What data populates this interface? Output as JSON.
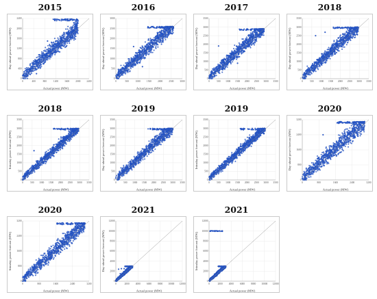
{
  "figure": {
    "background": "#ffffff",
    "point_color": "#2d5fd6",
    "point_edge": "#1a3f9c",
    "diagonal_color": "#8a8a8a",
    "grid_color": "#e6e6e6"
  },
  "chart_data": [
    {
      "type": "scatter",
      "title": "2015",
      "xlabel": "Actual power (MW)",
      "ylabel": "Day-ahead power forecast (MW)",
      "xticks": [
        "0",
        "400",
        "800",
        "1200",
        "1600",
        "2000",
        "2400"
      ],
      "yticks": [
        "0",
        "400",
        "800",
        "1200",
        "1600",
        "2000",
        "2400"
      ],
      "xlim": [
        0,
        2400
      ],
      "ylim": [
        0,
        2400
      ],
      "grid": true,
      "cloud": {
        "x_max": 2000,
        "y_max": 2380,
        "spread": 0.2
      },
      "series": [
        {
          "points": [
            [
              150,
              350
            ],
            [
              400,
              650
            ],
            [
              700,
              900
            ],
            [
              1000,
              1150
            ],
            [
              1300,
              1400
            ],
            [
              1600,
              1800
            ],
            [
              1900,
              2100
            ],
            [
              2000,
              2300
            ],
            [
              900,
              1500
            ],
            [
              500,
              200
            ]
          ]
        }
      ]
    },
    {
      "type": "scatter",
      "title": "2016",
      "xlabel": "Actual power (MW)",
      "ylabel": "Day-ahead power forecast (MW)",
      "xticks": [
        "0",
        "500",
        "1000",
        "1500",
        "2000",
        "2500",
        "3000"
      ],
      "yticks": [
        "0",
        "500",
        "1000",
        "1500",
        "2000",
        "2500",
        "3000"
      ],
      "xlim": [
        0,
        3000
      ],
      "ylim": [
        0,
        3000
      ],
      "grid": true,
      "cloud": {
        "x_max": 2600,
        "y_max": 2600,
        "spread": 0.22
      },
      "series": [
        {
          "points": [
            [
              200,
              400
            ],
            [
              600,
              900
            ],
            [
              1000,
              1300
            ],
            [
              1500,
              1700
            ],
            [
              2000,
              2200
            ],
            [
              2400,
              2550
            ],
            [
              2550,
              2600
            ],
            [
              800,
              1600
            ],
            [
              1200,
              600
            ]
          ]
        }
      ]
    },
    {
      "type": "scatter",
      "title": "2017",
      "xlabel": "Actual power (MW)",
      "ylabel": "Day-ahead power forecast (MW)",
      "xticks": [
        "0",
        "500",
        "1000",
        "1500",
        "2000",
        "2500",
        "3000",
        "3500"
      ],
      "yticks": [
        "0",
        "500",
        "1000",
        "1500",
        "2000",
        "2500",
        "3000",
        "3500"
      ],
      "xlim": [
        0,
        3500
      ],
      "ylim": [
        0,
        3500
      ],
      "grid": true,
      "cloud": {
        "x_max": 2900,
        "y_max": 2900,
        "spread": 0.22
      },
      "series": [
        {
          "points": [
            [
              300,
              500
            ],
            [
              700,
              1100
            ],
            [
              1200,
              1600
            ],
            [
              1700,
              2000
            ],
            [
              2200,
              2500
            ],
            [
              2700,
              2850
            ],
            [
              500,
              1900
            ],
            [
              1500,
              900
            ]
          ]
        }
      ]
    },
    {
      "type": "scatter",
      "title": "2018",
      "xlabel": "Actual power (MW)",
      "ylabel": "Day-ahead power forecast (MW)",
      "xticks": [
        "0",
        "500",
        "1000",
        "1500",
        "2000",
        "2500",
        "3000",
        "3500"
      ],
      "yticks": [
        "0",
        "500",
        "1000",
        "1500",
        "2000",
        "2500",
        "3000",
        "3500"
      ],
      "xlim": [
        0,
        3500
      ],
      "ylim": [
        0,
        3500
      ],
      "grid": true,
      "cloud": {
        "x_max": 2950,
        "y_max": 3000,
        "spread": 0.2
      },
      "series": [
        {
          "points": [
            [
              300,
              500
            ],
            [
              800,
              1100
            ],
            [
              1300,
              1500
            ],
            [
              1800,
              2000
            ],
            [
              2300,
              2500
            ],
            [
              2800,
              2900
            ],
            [
              700,
              2500
            ],
            [
              1200,
              2700
            ]
          ]
        }
      ]
    },
    {
      "type": "scatter",
      "title": "2018",
      "xlabel": "Actual power (MW)",
      "ylabel": "Intraday power forecast (MW)",
      "xticks": [
        "0",
        "500",
        "1000",
        "1500",
        "2000",
        "2500",
        "3000",
        "3500"
      ],
      "yticks": [
        "0",
        "500",
        "1000",
        "1500",
        "2000",
        "2500",
        "3000",
        "3500"
      ],
      "xlim": [
        0,
        3500
      ],
      "ylim": [
        0,
        3500
      ],
      "grid": true,
      "cloud": {
        "x_max": 2950,
        "y_max": 3000,
        "spread": 0.15
      },
      "series": [
        {
          "points": [
            [
              300,
              400
            ],
            [
              800,
              900
            ],
            [
              1300,
              1400
            ],
            [
              1800,
              1900
            ],
            [
              2300,
              2400
            ],
            [
              2800,
              2900
            ],
            [
              600,
              1700
            ]
          ]
        }
      ]
    },
    {
      "type": "scatter",
      "title": "2019",
      "xlabel": "Actual power (MW)",
      "ylabel": "Day-ahead power forecast (MW)",
      "xticks": [
        "0",
        "500",
        "1000",
        "1500",
        "2000",
        "2500",
        "3000",
        "3500"
      ],
      "yticks": [
        "0",
        "500",
        "1000",
        "1500",
        "2000",
        "2500",
        "3000",
        "3500"
      ],
      "xlim": [
        0,
        3500
      ],
      "ylim": [
        0,
        3500
      ],
      "grid": true,
      "cloud": {
        "x_max": 3000,
        "y_max": 3000,
        "spread": 0.18
      },
      "series": [
        {
          "points": [
            [
              300,
              400
            ],
            [
              800,
              1000
            ],
            [
              1300,
              1500
            ],
            [
              1800,
              2000
            ],
            [
              2300,
              2500
            ],
            [
              2900,
              2950
            ]
          ]
        }
      ]
    },
    {
      "type": "scatter",
      "title": "2019",
      "xlabel": "Actual power (MW)",
      "ylabel": "Intraday power forecast (MW)",
      "xticks": [
        "0",
        "500",
        "1000",
        "1500",
        "2000",
        "2500",
        "3000",
        "3500"
      ],
      "yticks": [
        "0",
        "500",
        "1000",
        "1500",
        "2000",
        "2500",
        "3000",
        "3500"
      ],
      "xlim": [
        0,
        3500
      ],
      "ylim": [
        0,
        3500
      ],
      "grid": true,
      "cloud": {
        "x_max": 2950,
        "y_max": 3000,
        "spread": 0.14
      },
      "series": [
        {
          "points": [
            [
              300,
              350
            ],
            [
              800,
              850
            ],
            [
              1300,
              1350
            ],
            [
              1800,
              1850
            ],
            [
              2300,
              2350
            ],
            [
              2900,
              2950
            ]
          ]
        }
      ]
    },
    {
      "type": "scatter",
      "title": "2020",
      "xlabel": "Actual power (MW)",
      "ylabel": "Day-ahead power forecast (MW)",
      "xticks": [
        "0",
        "800",
        "1600",
        "2400",
        "3200"
      ],
      "yticks": [
        "0",
        "800",
        "1600",
        "2400",
        "3200"
      ],
      "xlim": [
        0,
        3200
      ],
      "ylim": [
        0,
        3200
      ],
      "grid": true,
      "cloud": {
        "x_max": 3000,
        "y_max": 3100,
        "spread": 0.24
      },
      "series": [
        {
          "points": [
            [
              300,
              600
            ],
            [
              800,
              1200
            ],
            [
              1400,
              1800
            ],
            [
              2000,
              2300
            ],
            [
              2600,
              2800
            ],
            [
              3000,
              3100
            ],
            [
              1000,
              2400
            ]
          ]
        }
      ]
    },
    {
      "type": "scatter",
      "title": "2020",
      "xlabel": "Actual power (MW)",
      "ylabel": "Intraday power forecast (MW)",
      "xticks": [
        "0",
        "800",
        "1600",
        "2400",
        "3200"
      ],
      "yticks": [
        "0",
        "800",
        "1600",
        "2400",
        "3200"
      ],
      "xlim": [
        0,
        3200
      ],
      "ylim": [
        0,
        3200
      ],
      "grid": true,
      "cloud": {
        "x_max": 3000,
        "y_max": 3100,
        "spread": 0.2
      },
      "series": [
        {
          "points": [
            [
              300,
              500
            ],
            [
              800,
              1000
            ],
            [
              1400,
              1600
            ],
            [
              2000,
              2200
            ],
            [
              2600,
              2700
            ],
            [
              3000,
              3050
            ]
          ]
        }
      ]
    },
    {
      "type": "scatter",
      "title": "2021",
      "xlabel": "Actual power (MW)",
      "ylabel": "Day-ahead power forecast (MW)",
      "xticks": [
        "0",
        "2000",
        "4000",
        "6000",
        "8000",
        "10000",
        "12000"
      ],
      "yticks": [
        "0",
        "2000",
        "4000",
        "6000",
        "8000",
        "10000",
        "12000"
      ],
      "xlim": [
        0,
        12000
      ],
      "ylim": [
        0,
        12000
      ],
      "grid": true,
      "cloud": {
        "x_max": 3000,
        "y_max": 3000,
        "spread": 0.18
      },
      "series": [
        {
          "points": [
            [
              500,
              2400
            ],
            [
              1000,
              2500
            ],
            [
              1500,
              2500
            ],
            [
              2000,
              2500
            ],
            [
              2500,
              2600
            ],
            [
              3000,
              2700
            ],
            [
              800,
              1500
            ],
            [
              1600,
              1800
            ]
          ]
        }
      ]
    },
    {
      "type": "scatter",
      "title": "2021",
      "xlabel": "Actual power (MW)",
      "ylabel": "Intraday power forecast (MW)",
      "xticks": [
        "0",
        "2000",
        "4000",
        "6000",
        "8000",
        "10000",
        "12000"
      ],
      "yticks": [
        "0",
        "2000",
        "4000",
        "6000",
        "8000",
        "10000",
        "12000"
      ],
      "xlim": [
        0,
        12000
      ],
      "ylim": [
        0,
        12000
      ],
      "grid": true,
      "cloud": {
        "x_max": 3000,
        "y_max": 3000,
        "spread": 0.16
      },
      "outlier_band": {
        "y": 10000,
        "x_from": 0,
        "x_to": 2600
      },
      "series": [
        {
          "points": [
            [
              500,
              600
            ],
            [
              1000,
              1100
            ],
            [
              1500,
              1600
            ],
            [
              2000,
              2000
            ],
            [
              2500,
              2500
            ],
            [
              3000,
              2800
            ],
            [
              200,
              10000
            ],
            [
              1200,
              10000
            ],
            [
              2400,
              10000
            ]
          ]
        }
      ]
    }
  ]
}
